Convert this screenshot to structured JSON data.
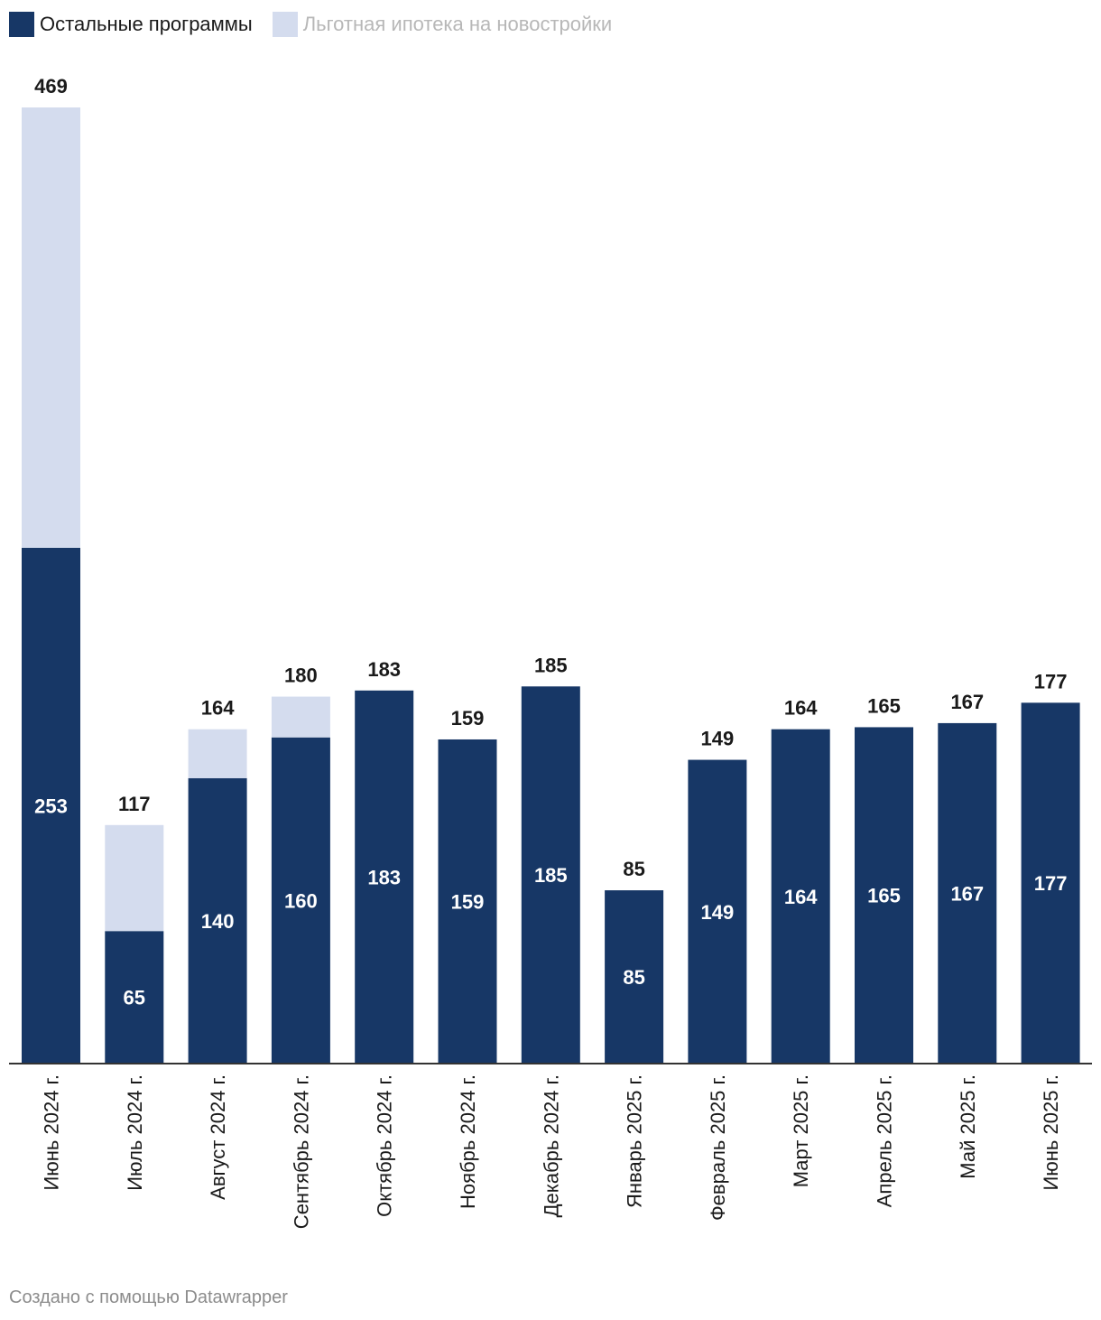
{
  "legend": {
    "items": [
      {
        "label": "Остальные программы",
        "color": "#173766"
      },
      {
        "label": "Льготная ипотека на новостройки",
        "color": "#d4dcee"
      }
    ]
  },
  "footer": {
    "text": "Создано с помощью Datawrapper"
  },
  "colors": {
    "dark": "#173766",
    "light": "#d4dcee",
    "axis": "#333333"
  },
  "chart_data": {
    "type": "bar",
    "stacked": true,
    "title": "",
    "xlabel": "",
    "ylabel": "",
    "ylim": [
      0,
      469
    ],
    "grid": false,
    "legend_position": "top-left",
    "categories": [
      "Июнь 2024 г.",
      "Июль 2024 г.",
      "Август 2024 г.",
      "Сентябрь 2024 г.",
      "Октябрь 2024 г.",
      "Ноябрь 2024 г.",
      "Декабрь 2024 г.",
      "Январь 2025 г.",
      "Февраль 2025 г.",
      "Март 2025 г.",
      "Апрель 2025 г.",
      "Май 2025 г.",
      "Июнь 2025 г."
    ],
    "series": [
      {
        "name": "Остальные программы",
        "values": [
          253,
          65,
          140,
          160,
          183,
          159,
          185,
          85,
          149,
          164,
          165,
          167,
          177
        ]
      },
      {
        "name": "Льготная ипотека на новостройки",
        "values": [
          216,
          52,
          24,
          20,
          0,
          0,
          0,
          0,
          0,
          0,
          0,
          0,
          0
        ]
      }
    ],
    "totals": [
      469,
      117,
      164,
      180,
      183,
      159,
      185,
      85,
      149,
      164,
      165,
      167,
      177
    ]
  }
}
